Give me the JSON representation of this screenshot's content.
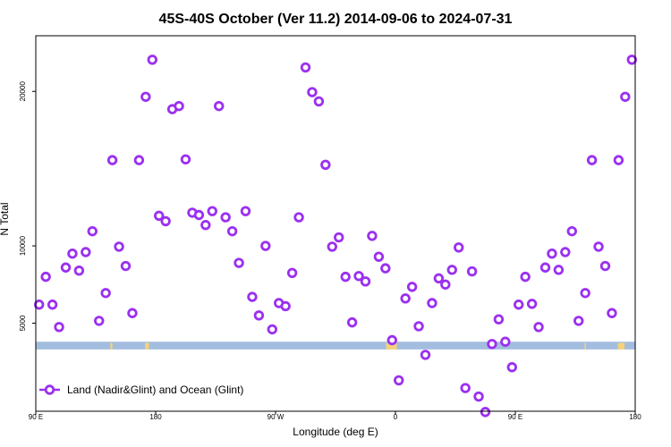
{
  "chart_data": {
    "type": "scatter",
    "title": "45S-40S October (Ver 11.2)   2014-09-06 to 2024-07-31",
    "xlabel": "Longitude (deg E)",
    "ylabel": "N Total",
    "x_ticks": [
      {
        "value": 90,
        "label": "90 E"
      },
      {
        "value": 180,
        "label": "180"
      },
      {
        "value": 270,
        "label": "90 W"
      },
      {
        "value": 360,
        "label": "0"
      },
      {
        "value": 450,
        "label": "90 E"
      },
      {
        "value": 540,
        "label": "180"
      }
    ],
    "y_ticks": [
      {
        "value": 5000,
        "label": "5000"
      },
      {
        "value": 10000,
        "label": "10000"
      },
      {
        "value": 20000,
        "label": "20000"
      }
    ],
    "xlim": [
      90,
      540
    ],
    "ylim": [
      -700,
      23600
    ],
    "legend": {
      "position": "bottom-left",
      "label": "Land (Nadir&Glint) and Ocean (Glint)"
    },
    "colors": {
      "marker": "#9b30f0",
      "band_ocean": "#a3bddf",
      "band_land": "#f5d27a"
    },
    "band": {
      "y_top": 3800,
      "y_bottom": 3300
    },
    "land_segments": [
      [
        146,
        147.5
      ],
      [
        172,
        175
      ],
      [
        353,
        361
      ],
      [
        502,
        503
      ],
      [
        527,
        532
      ]
    ],
    "series": [
      {
        "name": "Land (Nadir&Glint) and Ocean (Glint)",
        "points": [
          [
            92.5,
            6200
          ],
          [
            97.5,
            8000
          ],
          [
            102.5,
            6200
          ],
          [
            107.5,
            4750
          ],
          [
            112.5,
            8600
          ],
          [
            117.5,
            9500
          ],
          [
            122.5,
            8400
          ],
          [
            127.5,
            9600
          ],
          [
            132.5,
            10950
          ],
          [
            137.5,
            5150
          ],
          [
            142.5,
            6950
          ],
          [
            147.5,
            15550
          ],
          [
            152.5,
            9950
          ],
          [
            157.5,
            8700
          ],
          [
            162.5,
            5650
          ],
          [
            167.5,
            15550
          ],
          [
            172.5,
            19650
          ],
          [
            177.5,
            22050
          ],
          [
            182.5,
            11950
          ],
          [
            187.5,
            11600
          ],
          [
            192.5,
            18850
          ],
          [
            197.5,
            19050
          ],
          [
            202.5,
            15600
          ],
          [
            207.5,
            12150
          ],
          [
            212.5,
            12000
          ],
          [
            217.5,
            11350
          ],
          [
            222.5,
            12250
          ],
          [
            227.5,
            19050
          ],
          [
            232.5,
            11850
          ],
          [
            237.5,
            10950
          ],
          [
            242.5,
            8900
          ],
          [
            247.5,
            12250
          ],
          [
            252.5,
            6700
          ],
          [
            257.5,
            5500
          ],
          [
            262.5,
            10000
          ],
          [
            267.5,
            4600
          ],
          [
            272.5,
            6300
          ],
          [
            277.5,
            6100
          ],
          [
            282.5,
            8250
          ],
          [
            287.5,
            11850
          ],
          [
            292.5,
            21550
          ],
          [
            297.5,
            19950
          ],
          [
            302.5,
            19350
          ],
          [
            307.5,
            15250
          ],
          [
            312.5,
            9950
          ],
          [
            317.5,
            10550
          ],
          [
            322.5,
            8000
          ],
          [
            327.5,
            5050
          ],
          [
            332.5,
            8050
          ],
          [
            337.5,
            7700
          ],
          [
            342.5,
            10650
          ],
          [
            347.5,
            9300
          ],
          [
            352.5,
            8550
          ],
          [
            357.5,
            3900
          ],
          [
            362.5,
            1300
          ],
          [
            367.5,
            6600
          ],
          [
            372.5,
            7350
          ],
          [
            377.5,
            4800
          ],
          [
            382.5,
            2950
          ],
          [
            387.5,
            6300
          ],
          [
            392.5,
            7900
          ],
          [
            397.5,
            7500
          ],
          [
            402.5,
            8450
          ],
          [
            407.5,
            9900
          ],
          [
            412.5,
            800
          ],
          [
            417.5,
            8350
          ],
          [
            422.5,
            250
          ],
          [
            427.5,
            -750
          ],
          [
            432.5,
            3650
          ],
          [
            437.5,
            5250
          ],
          [
            442.5,
            3800
          ],
          [
            447.5,
            2150
          ],
          [
            452.5,
            6200
          ],
          [
            457.5,
            8000
          ],
          [
            462.5,
            6250
          ],
          [
            467.5,
            4750
          ],
          [
            472.5,
            8600
          ],
          [
            477.5,
            9500
          ],
          [
            482.5,
            8450
          ],
          [
            487.5,
            9600
          ],
          [
            492.5,
            10950
          ],
          [
            497.5,
            5150
          ],
          [
            502.5,
            6950
          ],
          [
            507.5,
            15550
          ],
          [
            512.5,
            9950
          ],
          [
            517.5,
            8700
          ],
          [
            522.5,
            5650
          ],
          [
            527.5,
            15550
          ],
          [
            532.5,
            19650
          ],
          [
            537.5,
            22050
          ]
        ]
      }
    ]
  }
}
